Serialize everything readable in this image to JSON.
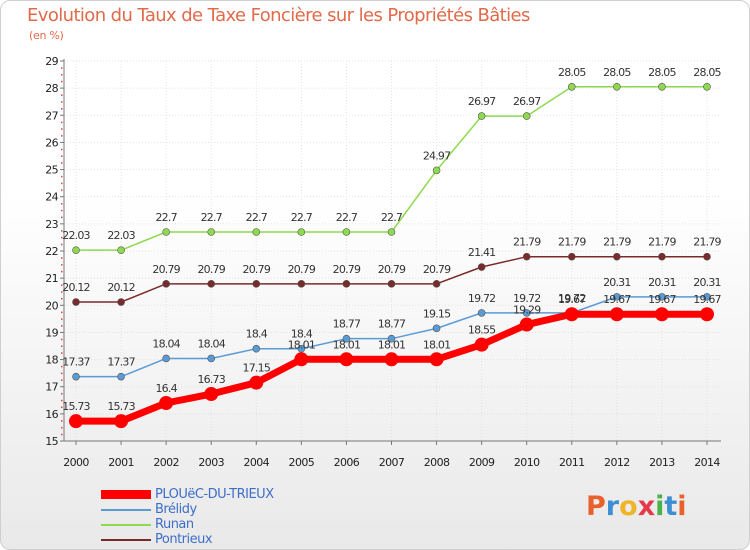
{
  "chart_data": {
    "type": "line",
    "title": "Evolution du Taux de Taxe Foncière sur les Propriétés Bâties",
    "ylabel": "(en %)",
    "xlabel": "",
    "x": [
      "2000",
      "2001",
      "2002",
      "2003",
      "2004",
      "2005",
      "2006",
      "2007",
      "2008",
      "2009",
      "2010",
      "2011",
      "2012",
      "2013",
      "2014"
    ],
    "ylim": [
      15,
      29
    ],
    "yticks": [
      15,
      16,
      17,
      18,
      19,
      20,
      21,
      22,
      23,
      24,
      25,
      26,
      27,
      28,
      29
    ],
    "grid": true,
    "legend_position": "bottom-left",
    "series": [
      {
        "name": "PLOUëC-DU-TRIEUX",
        "color": "#ff0000",
        "values": [
          15.73,
          15.73,
          16.4,
          16.73,
          17.15,
          18.01,
          18.01,
          18.01,
          18.01,
          18.55,
          19.29,
          19.67,
          19.67,
          19.67,
          19.67
        ],
        "labels": [
          "15.73",
          "15.73",
          "16.4",
          "16.73",
          "17.15",
          "18.01",
          "18.01",
          "18.01",
          "18.01",
          "18.55",
          "19.29",
          "19.67",
          "19.67",
          "19.67",
          "19.67"
        ]
      },
      {
        "name": "Brélidy",
        "color": "#5b9bd5",
        "values": [
          17.37,
          17.37,
          18.04,
          18.04,
          18.4,
          18.4,
          18.77,
          18.77,
          19.15,
          19.72,
          19.72,
          19.72,
          20.31,
          20.31,
          20.31
        ],
        "labels": [
          "17.37",
          "17.37",
          "18.04",
          "18.04",
          "18.4",
          "18.4",
          "18.77",
          "18.77",
          "19.15",
          "19.72",
          "19.72",
          "19.72",
          "20.31",
          "20.31",
          "20.31"
        ]
      },
      {
        "name": "Runan",
        "color": "#8fd94f",
        "values": [
          22.03,
          22.03,
          22.7,
          22.7,
          22.7,
          22.7,
          22.7,
          22.7,
          24.97,
          26.97,
          26.97,
          28.05,
          28.05,
          28.05,
          28.05
        ],
        "labels": [
          "22.03",
          "22.03",
          "22.7",
          "22.7",
          "22.7",
          "22.7",
          "22.7",
          "22.7",
          "24.97",
          "26.97",
          "26.97",
          "28.05",
          "28.05",
          "28.05",
          "28.05"
        ]
      },
      {
        "name": "Pontrieux",
        "color": "#7a2a2a",
        "values": [
          20.12,
          20.12,
          20.79,
          20.79,
          20.79,
          20.79,
          20.79,
          20.79,
          20.79,
          21.41,
          21.79,
          21.79,
          21.79,
          21.79,
          21.79
        ],
        "labels": [
          "20.12",
          "20.12",
          "20.79",
          "20.79",
          "20.79",
          "20.79",
          "20.79",
          "20.79",
          "20.79",
          "21.41",
          "21.79",
          "21.79",
          "21.79",
          "21.79",
          "21.79"
        ]
      }
    ]
  },
  "logo": {
    "text": "Proxiti",
    "colors": [
      "#e8612c",
      "#3d8fd4",
      "#f0b428",
      "#e43a4c",
      "#4bb14b",
      "#3d8fd4",
      "#e8612c"
    ]
  }
}
